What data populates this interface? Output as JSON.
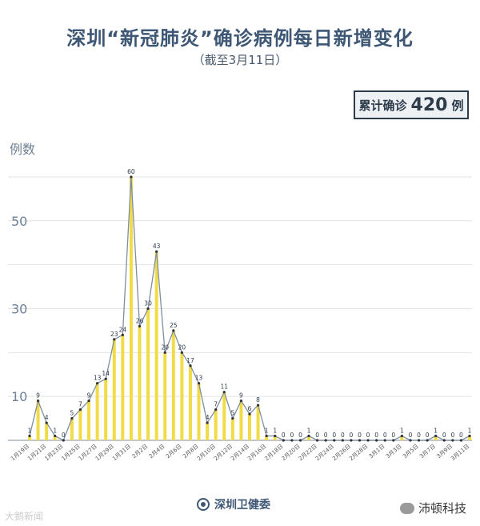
{
  "header": {
    "title": "深圳“新冠肺炎”确诊病例每日新增变化",
    "subtitle": "（截至3月11日）",
    "total_label": "累计确诊",
    "total_value": "420",
    "total_unit": "例"
  },
  "footer": {
    "source": "深圳卫健委",
    "watermark_left": "大鹅新闻",
    "watermark_right": "沛顿科技"
  },
  "colors": {
    "bar": "#f1dc47",
    "line": "#7d8ea2",
    "grid": "#e4e4e4",
    "axis": "#aab4c0",
    "title": "#3d5774"
  },
  "chart_data": {
    "type": "bar",
    "ylabel": "例数",
    "yticks": [
      10,
      30,
      50
    ],
    "ylim": [
      0,
      62
    ],
    "grid": true,
    "overlay_line": true,
    "x": [
      "1月19日",
      "1月20日",
      "1月21日",
      "1月22日",
      "1月23日",
      "1月24日",
      "1月25日",
      "1月26日",
      "1月27日",
      "1月28日",
      "1月29日",
      "1月30日",
      "1月31日",
      "2月1日",
      "2月2日",
      "2月3日",
      "2月4日",
      "2月5日",
      "2月6日",
      "2月7日",
      "2月8日",
      "2月9日",
      "2月10日",
      "2月11日",
      "2月12日",
      "2月13日",
      "2月14日",
      "2月15日",
      "2月16日",
      "2月17日",
      "2月18日",
      "2月19日",
      "2月20日",
      "2月21日",
      "2月22日",
      "2月23日",
      "2月24日",
      "2月25日",
      "2月26日",
      "2月27日",
      "2月28日",
      "2月29日",
      "3月1日",
      "3月2日",
      "3月3日",
      "3月4日",
      "3月5日",
      "3月6日",
      "3月7日",
      "3月8日",
      "3月9日",
      "3月10日",
      "3月11日"
    ],
    "values": [
      1,
      9,
      4,
      1,
      0,
      5,
      7,
      9,
      13,
      14,
      23,
      24,
      60,
      26,
      30,
      43,
      20,
      25,
      20,
      17,
      13,
      4,
      7,
      11,
      5,
      9,
      6,
      8,
      1,
      1,
      0,
      0,
      0,
      1,
      0,
      0,
      0,
      0,
      0,
      0,
      0,
      0,
      0,
      0,
      1,
      0,
      0,
      0,
      1,
      0,
      0,
      0,
      1
    ],
    "xtick_labels": [
      "1月19日",
      "1月21日",
      "1月23日",
      "1月25日",
      "1月27日",
      "1月29日",
      "1月31日",
      "2月2日",
      "2月4日",
      "2月6日",
      "2月8日",
      "2月10日",
      "2月12日",
      "2月14日",
      "2月16日",
      "2月18日",
      "2月20日",
      "2月22日",
      "2月24日",
      "2月26日",
      "2月28日",
      "3月1日",
      "3月3日",
      "3月5日",
      "3月7日",
      "3月9日",
      "3月11日"
    ]
  }
}
